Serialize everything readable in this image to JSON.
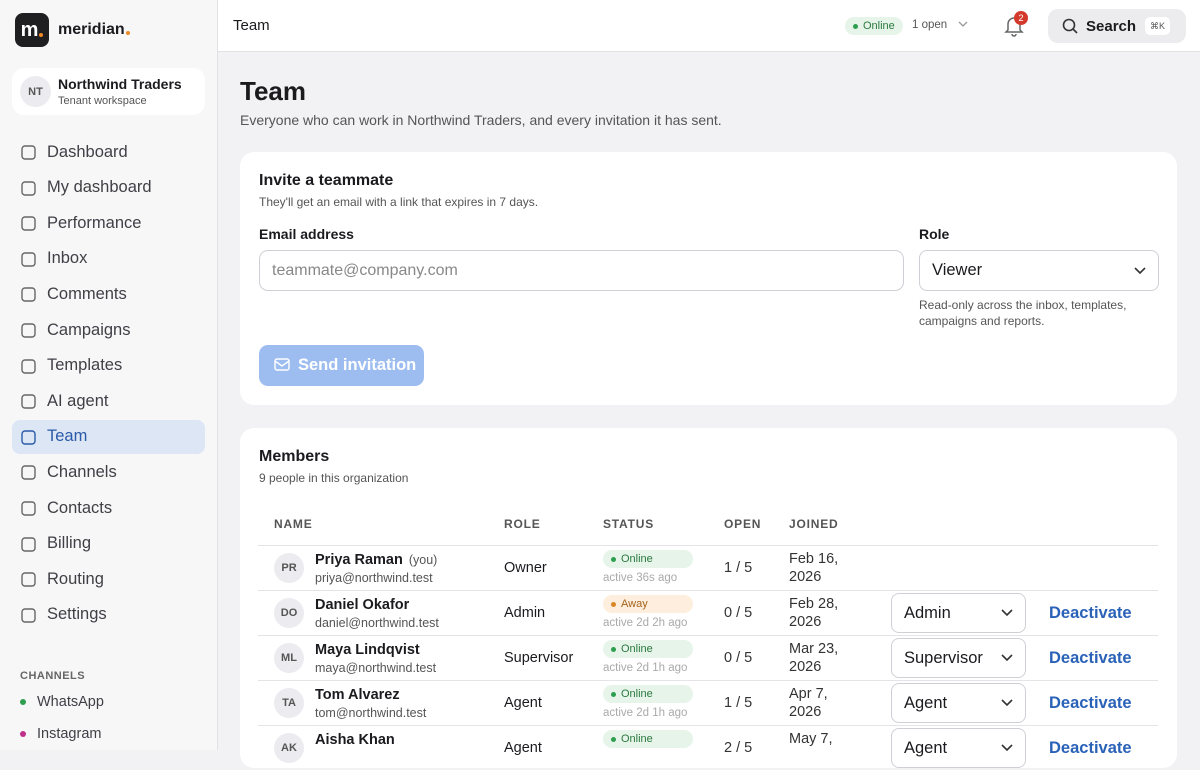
{
  "brand": {
    "logo": "m",
    "name": "meridian"
  },
  "workspace": {
    "initials": "NT",
    "name": "Northwind Traders",
    "subtitle": "Tenant workspace"
  },
  "nav": [
    {
      "label": "Dashboard"
    },
    {
      "label": "My dashboard"
    },
    {
      "label": "Performance"
    },
    {
      "label": "Inbox"
    },
    {
      "label": "Comments"
    },
    {
      "label": "Campaigns"
    },
    {
      "label": "Templates"
    },
    {
      "label": "AI agent"
    },
    {
      "label": "Team",
      "active": true
    },
    {
      "label": "Channels"
    },
    {
      "label": "Contacts"
    },
    {
      "label": "Billing"
    },
    {
      "label": "Routing"
    },
    {
      "label": "Settings"
    }
  ],
  "channels": {
    "heading": "CHANNELS",
    "items": [
      {
        "label": "WhatsApp",
        "color": "#2e9e4f"
      },
      {
        "label": "Instagram",
        "color": "#c0308a"
      }
    ]
  },
  "topbar": {
    "title": "Team",
    "status": "Online",
    "open": "1 open",
    "notifications": 2,
    "search": "Search",
    "shortcut": "⌘K"
  },
  "page": {
    "title": "Team",
    "subtitle": "Everyone who can work in Northwind Traders, and every invitation it has sent."
  },
  "invite": {
    "title": "Invite a teammate",
    "subtitle": "They'll get an email with a link that expires in 7 days.",
    "email_label": "Email address",
    "email_placeholder": "teammate@company.com",
    "role_label": "Role",
    "role_value": "Viewer",
    "role_help": "Read-only across the inbox, templates, campaigns and reports.",
    "button": "Send invitation"
  },
  "members": {
    "title": "Members",
    "subtitle": "9 people in this organization",
    "columns": [
      "NAME",
      "ROLE",
      "STATUS",
      "OPEN",
      "JOINED"
    ],
    "rows": [
      {
        "initials": "PR",
        "name": "Priya Raman",
        "tag": "(you)",
        "email": "priya@northwind.test",
        "role": "Owner",
        "status": "Online",
        "activity": "active 36s ago",
        "open": "1 / 5",
        "joined": "Feb 16, 2026"
      },
      {
        "initials": "DO",
        "name": "Daniel Okafor",
        "email": "daniel@northwind.test",
        "role": "Admin",
        "status": "Away",
        "activity": "active 2d 2h ago",
        "open": "0 / 5",
        "joined": "Feb 28, 2026",
        "select": "Admin",
        "action": "Deactivate"
      },
      {
        "initials": "ML",
        "name": "Maya Lindqvist",
        "email": "maya@northwind.test",
        "role": "Supervisor",
        "status": "Online",
        "activity": "active 2d 1h ago",
        "open": "0 / 5",
        "joined": "Mar 23, 2026",
        "select": "Supervisor",
        "action": "Deactivate"
      },
      {
        "initials": "TA",
        "name": "Tom Alvarez",
        "email": "tom@northwind.test",
        "role": "Agent",
        "status": "Online",
        "activity": "active 2d 1h ago",
        "open": "1 / 5",
        "joined": "Apr 7, 2026",
        "select": "Agent",
        "action": "Deactivate"
      },
      {
        "initials": "AK",
        "name": "Aisha Khan",
        "role": "Agent",
        "status": "Online",
        "open": "2 / 5",
        "joined": "May 7,",
        "select": "Agent",
        "action": "Deactivate"
      }
    ]
  }
}
